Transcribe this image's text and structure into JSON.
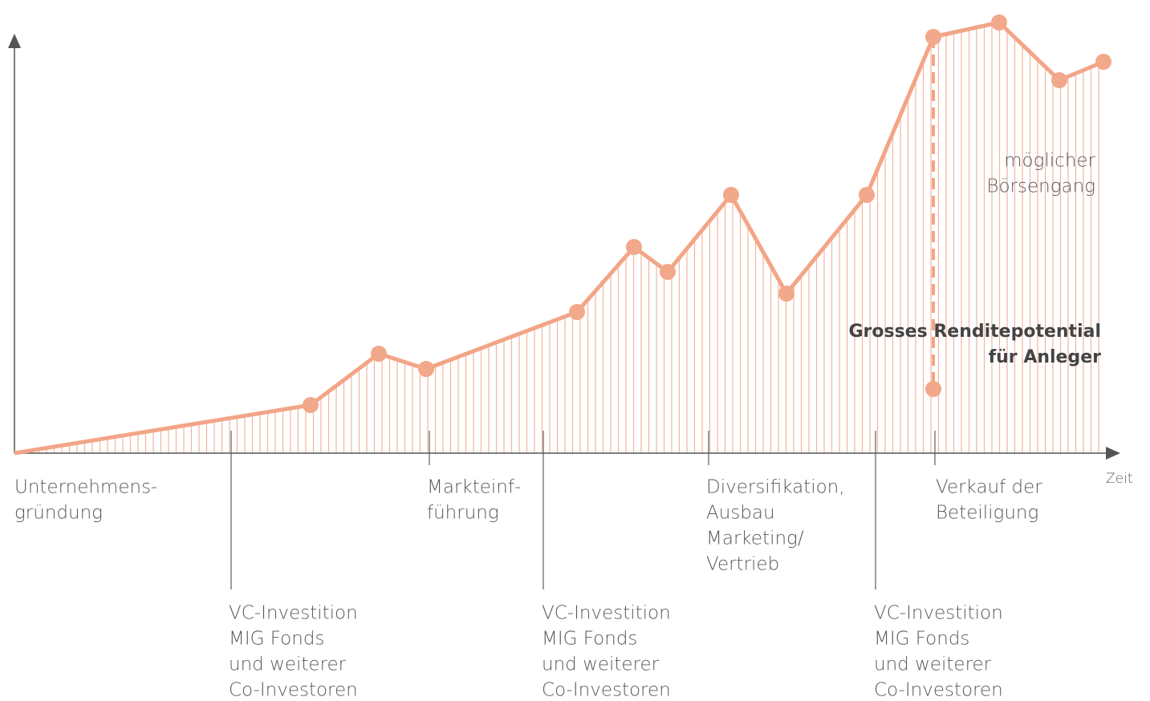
{
  "axis_label": "Zeit",
  "milestones": [
    {
      "lines": [
        "Unternehmens-",
        "gründung"
      ]
    },
    {
      "lines": [
        "VC-Investition",
        "MIG Fonds",
        "und weiterer",
        "Co-Investoren"
      ]
    },
    {
      "lines": [
        "Markteinf-",
        "führung"
      ]
    },
    {
      "lines": [
        "VC-Investition",
        "MIG Fonds",
        "und weiterer",
        "Co-Investoren"
      ]
    },
    {
      "lines": [
        "Diversifikation,",
        "Ausbau",
        "Marketing/",
        "Vertrieb"
      ]
    },
    {
      "lines": [
        "VC-Investition",
        "MIG Fonds",
        "und weiterer",
        "Co-Investoren"
      ]
    },
    {
      "lines": [
        "Verkauf der",
        "Beteiligung"
      ]
    }
  ],
  "annotations": {
    "ipo": [
      "möglicher",
      "Börsengang"
    ],
    "return": [
      "Grosses Renditepotential",
      "für Anleger"
    ]
  }
}
